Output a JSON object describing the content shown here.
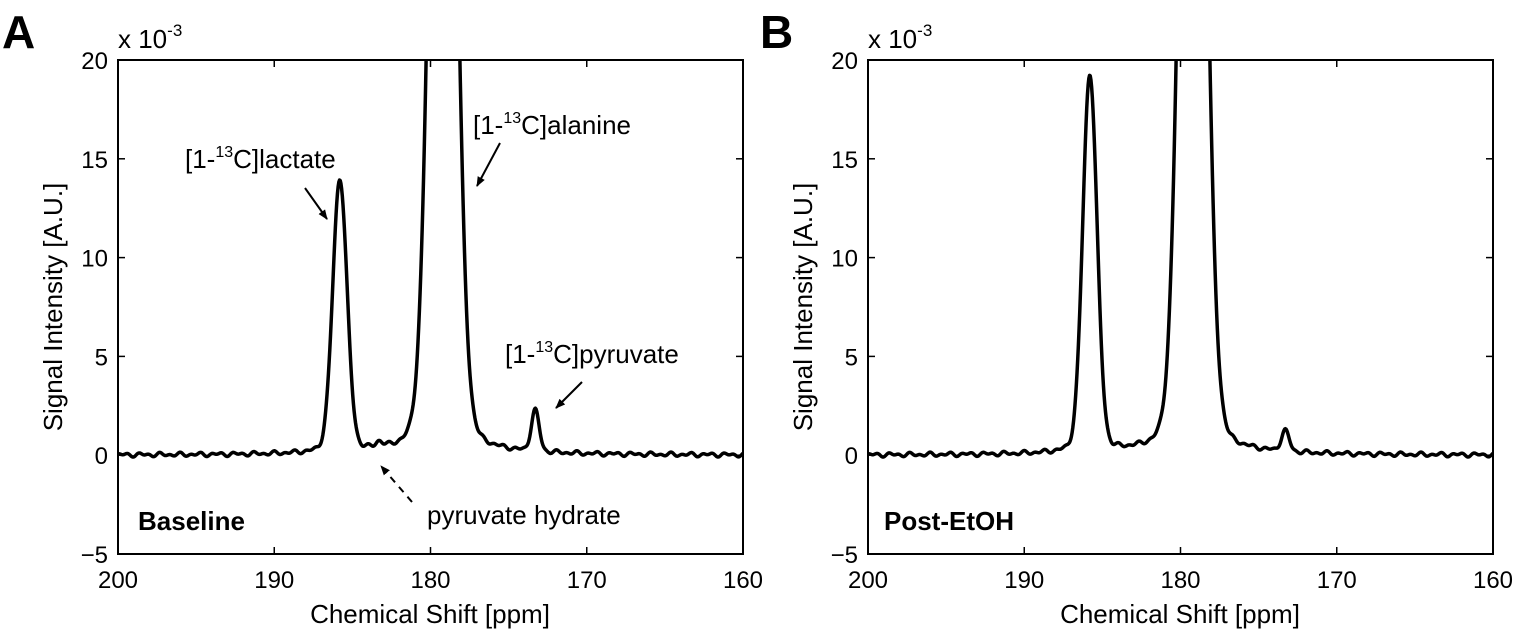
{
  "chart_data": [
    {
      "type": "line",
      "panel_label": "A",
      "condition_label": "Baseline",
      "xlabel": "Chemical Shift [ppm]",
      "ylabel": "Signal Intensity [A.U.]",
      "y_multiplier": {
        "base": "x 10",
        "exp": "-3"
      },
      "xlim": [
        200,
        160
      ],
      "ylim": [
        -5,
        20
      ],
      "x_reversed": true,
      "xticks": [
        200,
        190,
        180,
        170,
        160
      ],
      "xtick_labels": [
        "200",
        "190",
        "180",
        "170",
        "160"
      ],
      "yticks": [
        -5,
        0,
        5,
        10,
        15,
        20
      ],
      "ytick_labels": [
        "−5",
        "0",
        "5",
        "10",
        "15",
        "20"
      ],
      "grid": false,
      "peaks": [
        {
          "x": 185.8,
          "y": 13.3,
          "width": 0.45
        },
        {
          "x": 179.2,
          "y": 60,
          "width": 0.7
        },
        {
          "x": 173.3,
          "y": 2.0,
          "width": 0.25
        },
        {
          "x": 183.3,
          "y": 0.25,
          "width": 0.2
        }
      ],
      "annotations": [
        {
          "pre": "[1-",
          "sup": "13",
          "post": "C]lactate"
        },
        {
          "pre": "[1-",
          "sup": "13",
          "post": "C]alanine"
        },
        {
          "pre": "[1-",
          "sup": "13",
          "post": "C]pyruvate"
        },
        {
          "pre": "pyruvate hydrate",
          "sup": "",
          "post": ""
        }
      ]
    },
    {
      "type": "line",
      "panel_label": "B",
      "condition_label": "Post-EtOH",
      "xlabel": "Chemical Shift [ppm]",
      "ylabel": "Signal Intensity [A.U.]",
      "y_multiplier": {
        "base": "x 10",
        "exp": "-3"
      },
      "xlim": [
        200,
        160
      ],
      "ylim": [
        -5,
        20
      ],
      "x_reversed": true,
      "xticks": [
        200,
        190,
        180,
        170,
        160
      ],
      "xtick_labels": [
        "200",
        "190",
        "180",
        "170",
        "160"
      ],
      "yticks": [
        -5,
        0,
        5,
        10,
        15,
        20
      ],
      "ytick_labels": [
        "−5",
        "0",
        "5",
        "10",
        "15",
        "20"
      ],
      "grid": false,
      "peaks": [
        {
          "x": 185.8,
          "y": 18.4,
          "width": 0.45
        },
        {
          "x": 179.2,
          "y": 60,
          "width": 0.7
        },
        {
          "x": 173.3,
          "y": 1.0,
          "width": 0.25
        }
      ],
      "annotations": []
    }
  ]
}
